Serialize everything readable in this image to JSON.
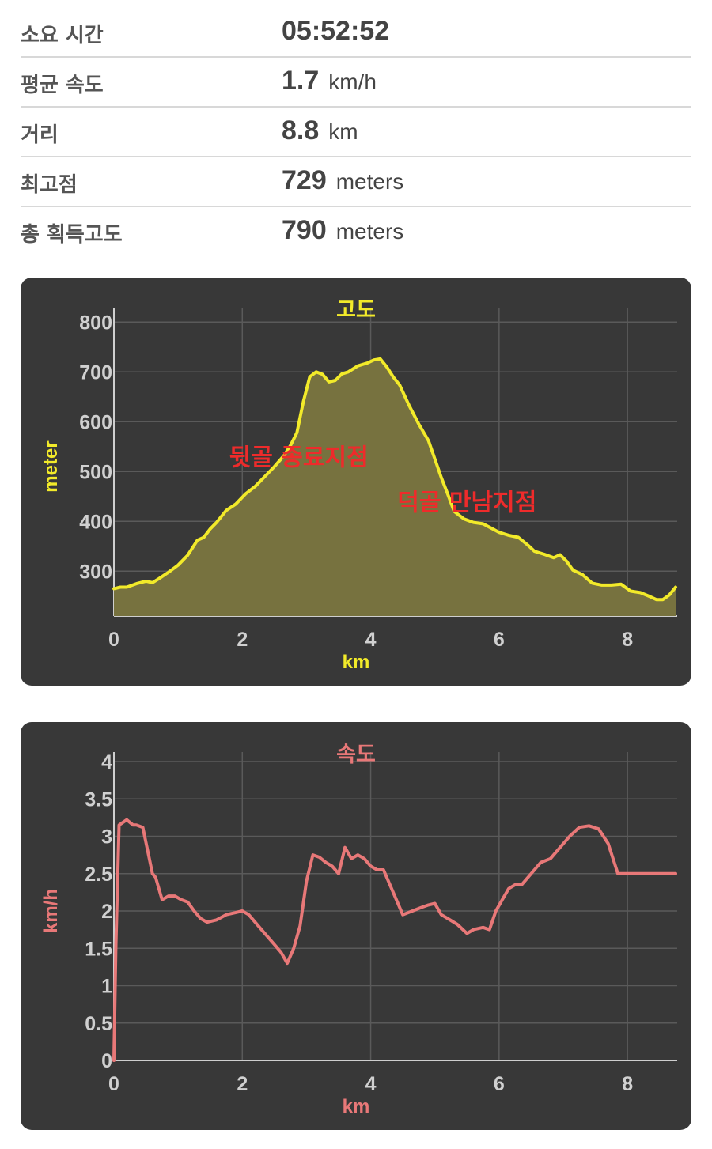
{
  "stats": [
    {
      "label": "소요 시간",
      "value": "05:52:52",
      "unit": ""
    },
    {
      "label": "평균 속도",
      "value": "1.7",
      "unit": "km/h"
    },
    {
      "label": "거리",
      "value": "8.8",
      "unit": "km"
    },
    {
      "label": "최고점",
      "value": "729",
      "unit": "meters"
    },
    {
      "label": "총 획득고도",
      "value": "790",
      "unit": "meters"
    }
  ],
  "colors": {
    "card_bg": "#383838",
    "grid": "#5a5a5a",
    "altitude_line": "#f2ea2a",
    "altitude_fill": "#77723f",
    "speed_line": "#e87878",
    "annotation": "#ee2b2b"
  },
  "chart_data": [
    {
      "type": "area",
      "title": "고도",
      "xlabel": "km",
      "ylabel": "meter",
      "xlim": [
        0,
        8.75
      ],
      "ylim": [
        210,
        810
      ],
      "xticks": [
        0,
        2,
        4,
        6,
        8
      ],
      "yticks": [
        300,
        400,
        500,
        600,
        700,
        800
      ],
      "grid": true,
      "annotations": [
        {
          "text": "뒷골 종료지점",
          "x": 2.88,
          "y": 528
        },
        {
          "text": "덕골 만남지점",
          "x": 5.5,
          "y": 438
        }
      ],
      "series": [
        {
          "x": [
            0,
            0.1,
            0.2,
            0.35,
            0.5,
            0.6,
            0.7,
            0.85,
            1.0,
            1.15,
            1.3,
            1.4,
            1.5,
            1.6,
            1.75,
            1.9,
            2.05,
            2.2,
            2.35,
            2.5,
            2.65,
            2.75,
            2.85,
            2.95,
            3.05,
            3.15,
            3.25,
            3.35,
            3.45,
            3.55,
            3.65,
            3.8,
            3.95,
            4.05,
            4.15,
            4.25,
            4.35,
            4.45,
            4.6,
            4.75,
            4.9,
            5.0,
            5.1,
            5.2,
            5.3,
            5.45,
            5.6,
            5.75,
            5.9,
            6.0,
            6.15,
            6.3,
            6.45,
            6.55,
            6.7,
            6.85,
            6.95,
            7.05,
            7.15,
            7.3,
            7.45,
            7.6,
            7.75,
            7.9,
            8.05,
            8.2,
            8.35,
            8.45,
            8.55,
            8.65,
            8.75
          ],
          "y": [
            265,
            268,
            268,
            275,
            280,
            277,
            285,
            298,
            312,
            332,
            362,
            368,
            385,
            398,
            422,
            435,
            455,
            470,
            490,
            510,
            532,
            552,
            578,
            640,
            690,
            700,
            695,
            680,
            683,
            696,
            700,
            712,
            718,
            724,
            726,
            710,
            690,
            674,
            632,
            595,
            562,
            525,
            488,
            455,
            420,
            405,
            398,
            395,
            385,
            378,
            372,
            368,
            352,
            340,
            334,
            327,
            333,
            320,
            302,
            293,
            276,
            272,
            272,
            274,
            260,
            257,
            249,
            243,
            243,
            252,
            268
          ]
        }
      ]
    },
    {
      "type": "line",
      "title": "속도",
      "xlabel": "km",
      "ylabel": "km/h",
      "xlim": [
        0,
        8.75
      ],
      "ylim": [
        0,
        4
      ],
      "xticks": [
        0,
        2,
        4,
        6,
        8
      ],
      "yticks": [
        0,
        0.5,
        1,
        1.5,
        2,
        2.5,
        3,
        3.5,
        4
      ],
      "ytick_labels": [
        "0",
        "0.5",
        "1",
        "1.5",
        "2",
        "2.5",
        "3",
        "3.5",
        "4"
      ],
      "grid": true,
      "series": [
        {
          "x": [
            0,
            0.03,
            0.08,
            0.2,
            0.3,
            0.35,
            0.45,
            0.6,
            0.65,
            0.75,
            0.85,
            0.95,
            1.05,
            1.15,
            1.25,
            1.35,
            1.45,
            1.6,
            1.75,
            1.9,
            2.0,
            2.1,
            2.2,
            2.35,
            2.5,
            2.6,
            2.7,
            2.8,
            2.9,
            3.0,
            3.1,
            3.2,
            3.3,
            3.4,
            3.5,
            3.6,
            3.7,
            3.8,
            3.9,
            4.0,
            4.1,
            4.2,
            4.35,
            4.5,
            4.65,
            4.8,
            4.9,
            5.0,
            5.1,
            5.2,
            5.35,
            5.5,
            5.6,
            5.75,
            5.85,
            5.95,
            6.05,
            6.15,
            6.25,
            6.35,
            6.45,
            6.55,
            6.65,
            6.8,
            6.95,
            7.1,
            7.25,
            7.4,
            7.55,
            7.7,
            7.85,
            8.0,
            8.15,
            8.25,
            8.35,
            8.45,
            8.55,
            8.65,
            8.75
          ],
          "y": [
            0,
            1.5,
            3.15,
            3.22,
            3.15,
            3.15,
            3.12,
            2.5,
            2.45,
            2.15,
            2.2,
            2.2,
            2.15,
            2.12,
            2.0,
            1.9,
            1.85,
            1.88,
            1.95,
            1.98,
            2.0,
            1.95,
            1.85,
            1.7,
            1.55,
            1.45,
            1.3,
            1.5,
            1.8,
            2.4,
            2.75,
            2.72,
            2.65,
            2.6,
            2.5,
            2.85,
            2.7,
            2.75,
            2.7,
            2.6,
            2.55,
            2.55,
            2.25,
            1.95,
            2.0,
            2.05,
            2.08,
            2.1,
            1.95,
            1.9,
            1.82,
            1.7,
            1.75,
            1.78,
            1.75,
            2.0,
            2.15,
            2.3,
            2.35,
            2.35,
            2.45,
            2.55,
            2.65,
            2.7,
            2.85,
            3.0,
            3.12,
            3.14,
            3.1,
            2.9,
            2.5,
            2.5,
            2.5,
            2.5,
            2.5,
            2.5,
            2.5,
            2.5,
            2.5
          ]
        }
      ]
    }
  ]
}
